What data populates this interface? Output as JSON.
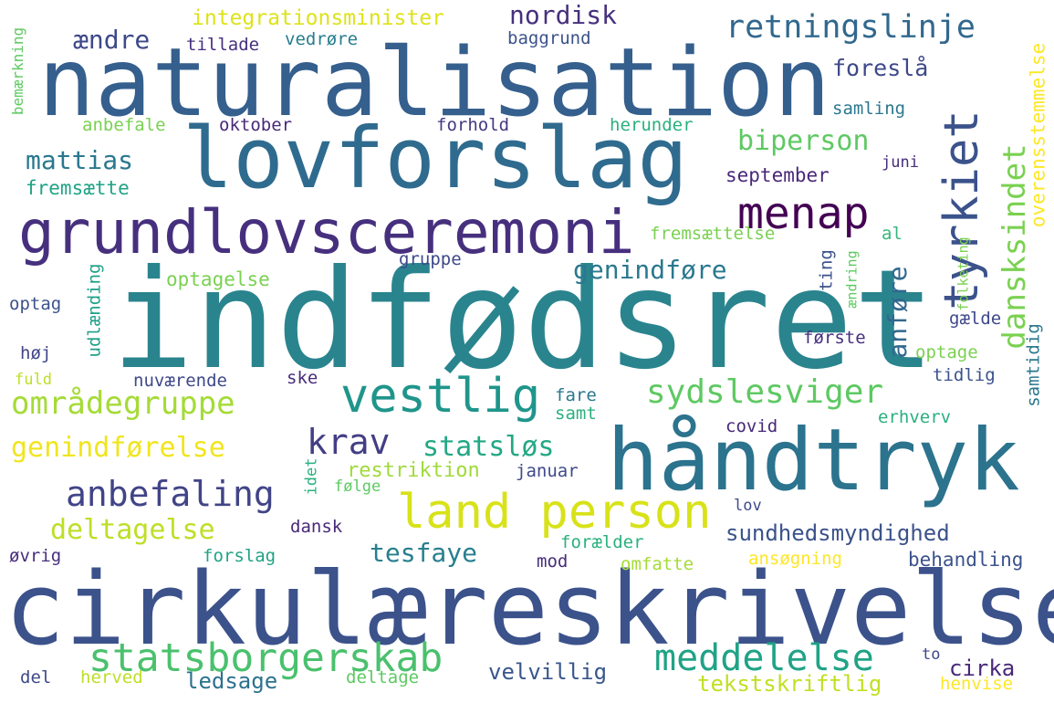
{
  "words": [
    {
      "text": "indfødsret",
      "color": "#2a848e"
    },
    {
      "text": "cirkulæreskrivelse",
      "color": "#3b528b"
    },
    {
      "text": "naturalisation",
      "color": "#355f8d"
    },
    {
      "text": "håndtryk",
      "color": "#2c738e"
    },
    {
      "text": "lovforslag",
      "color": "#2f6b8e"
    },
    {
      "text": "grundlovsceremoni",
      "color": "#46307e"
    },
    {
      "text": "land person",
      "color": "#d8e219"
    },
    {
      "text": "statsborgerskab",
      "color": "#4ac16d"
    },
    {
      "text": "vestlig",
      "color": "#1f958b"
    },
    {
      "text": "menap",
      "color": "#440154"
    },
    {
      "text": "meddelelse",
      "color": "#20a386"
    },
    {
      "text": "områdegruppe",
      "color": "#a5db36"
    },
    {
      "text": "sydslesviger",
      "color": "#5ec962"
    },
    {
      "text": "tyrkiet",
      "color": "#3b528b"
    },
    {
      "text": "dansksindet",
      "color": "#7ad151"
    },
    {
      "text": "anbefaling",
      "color": "#414487"
    },
    {
      "text": "retningslinje",
      "color": "#31688e"
    },
    {
      "text": "krav",
      "color": "#433e85"
    },
    {
      "text": "deltagelse",
      "color": "#bddf26"
    },
    {
      "text": "genindførelse",
      "color": "#f1e51d"
    },
    {
      "text": "genindføre",
      "color": "#2a788e"
    },
    {
      "text": "statsløs",
      "color": "#22a884"
    },
    {
      "text": "biperson",
      "color": "#5ec962"
    },
    {
      "text": "mattias",
      "color": "#2a788e"
    },
    {
      "text": "tesfaye",
      "color": "#277f8e"
    },
    {
      "text": "nordisk",
      "color": "#46307e"
    },
    {
      "text": "ændre",
      "color": "#3e4989"
    },
    {
      "text": "anføre",
      "color": "#31688e"
    },
    {
      "text": "integrationsminister",
      "color": "#dde318"
    },
    {
      "text": "foreslå",
      "color": "#3e4989"
    },
    {
      "text": "velvillig",
      "color": "#39568c"
    },
    {
      "text": "ledsage",
      "color": "#2c728e"
    },
    {
      "text": "sundhedsmyndighed",
      "color": "#3b528b"
    },
    {
      "text": "restriktion",
      "color": "#a0da39"
    },
    {
      "text": "tekstskriftlig",
      "color": "#c2df23"
    },
    {
      "text": "overensstemmelse",
      "color": "#fde725"
    },
    {
      "text": "cirka",
      "color": "#482878"
    },
    {
      "text": "optagelse",
      "color": "#7ad151"
    },
    {
      "text": "september",
      "color": "#482878"
    },
    {
      "text": "fremsætte",
      "color": "#20a386"
    },
    {
      "text": "behandling",
      "color": "#3b528b"
    },
    {
      "text": "nuværende",
      "color": "#3e4989"
    },
    {
      "text": "oktober",
      "color": "#482878"
    },
    {
      "text": "forhold",
      "color": "#443983"
    },
    {
      "text": "herunder",
      "color": "#2ab07f"
    },
    {
      "text": "anbefale",
      "color": "#7ad151"
    },
    {
      "text": "baggrund",
      "color": "#3b528b"
    },
    {
      "text": "vedrøre",
      "color": "#287d8e"
    },
    {
      "text": "tillade",
      "color": "#46307e"
    },
    {
      "text": "samling",
      "color": "#2a788e"
    },
    {
      "text": "gruppe",
      "color": "#3e4989"
    },
    {
      "text": "optag",
      "color": "#3b528b"
    },
    {
      "text": "udlænding",
      "color": "#1fa088"
    },
    {
      "text": "høj",
      "color": "#414487"
    },
    {
      "text": "fuld",
      "color": "#bddf26"
    },
    {
      "text": "ske",
      "color": "#472d7b"
    },
    {
      "text": "fare",
      "color": "#2a788e"
    },
    {
      "text": "samt",
      "color": "#2ab07f"
    },
    {
      "text": "covid",
      "color": "#482878"
    },
    {
      "text": "erhverv",
      "color": "#2ab07f"
    },
    {
      "text": "samtidig",
      "color": "#2a788e"
    },
    {
      "text": "tidlig",
      "color": "#3b528b"
    },
    {
      "text": "optage",
      "color": "#7ad151"
    },
    {
      "text": "første",
      "color": "#46307e"
    },
    {
      "text": "gælde",
      "color": "#3e4989"
    },
    {
      "text": "ting",
      "color": "#3b528b"
    },
    {
      "text": "ændring",
      "color": "#5ec962"
    },
    {
      "text": "folketing",
      "color": "#7ad151"
    },
    {
      "text": "al",
      "color": "#35b779"
    },
    {
      "text": "fremsættelse",
      "color": "#7ad151"
    },
    {
      "text": "juni",
      "color": "#472d7b"
    },
    {
      "text": "januar",
      "color": "#3e4989"
    },
    {
      "text": "følge",
      "color": "#5ec962"
    },
    {
      "text": "idet",
      "color": "#2ab07f"
    },
    {
      "text": "lov",
      "color": "#3e4989"
    },
    {
      "text": "dansk",
      "color": "#482878"
    },
    {
      "text": "forælder",
      "color": "#2ab07f"
    },
    {
      "text": "forslag",
      "color": "#20a386"
    },
    {
      "text": "mod",
      "color": "#472d7b"
    },
    {
      "text": "omfatte",
      "color": "#a5db36"
    },
    {
      "text": "ansøgning",
      "color": "#fde725"
    },
    {
      "text": "øvrig",
      "color": "#472d7b"
    },
    {
      "text": "del",
      "color": "#3e4989"
    },
    {
      "text": "herved",
      "color": "#bddf26"
    },
    {
      "text": "deltage",
      "color": "#5ec962"
    },
    {
      "text": "to",
      "color": "#3e4989"
    },
    {
      "text": "henvise",
      "color": "#fde725"
    },
    {
      "text": "bemærkning",
      "color": "#5ec962"
    }
  ]
}
